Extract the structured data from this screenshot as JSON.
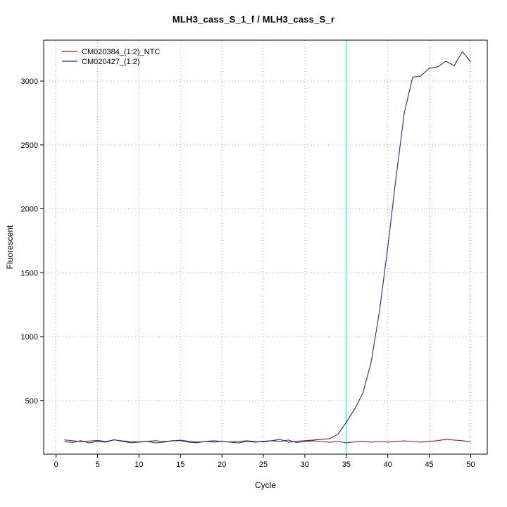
{
  "chart_data": {
    "type": "line",
    "title": "MLH3_cass_S_1_f / MLH3_cass_S_r",
    "xlabel": "Cycle",
    "ylabel": "Fluorescent",
    "xticks": [
      0,
      5,
      10,
      15,
      20,
      25,
      30,
      35,
      40,
      45,
      50
    ],
    "yticks": [
      500,
      1000,
      1500,
      2000,
      2500,
      3000
    ],
    "xlim": [
      -1.5,
      52
    ],
    "ylim": [
      80,
      3320
    ],
    "grid": true,
    "grid_color": "#bdbdbd",
    "legend_position": "top-left",
    "threshold_line": {
      "x": 35,
      "color": "#00ffff"
    },
    "x": [
      1,
      2,
      3,
      4,
      5,
      6,
      7,
      8,
      9,
      10,
      11,
      12,
      13,
      14,
      15,
      16,
      17,
      18,
      19,
      20,
      21,
      22,
      23,
      24,
      25,
      26,
      27,
      28,
      29,
      30,
      31,
      32,
      33,
      34,
      35,
      36,
      37,
      38,
      39,
      40,
      41,
      42,
      43,
      44,
      45,
      46,
      47,
      48,
      49,
      50
    ],
    "series": [
      {
        "name": "CM020384_(1:2)_NTC",
        "color": "#8b2525",
        "values": [
          192,
          186,
          178,
          183,
          188,
          180,
          192,
          184,
          179,
          176,
          181,
          186,
          179,
          184,
          190,
          181,
          175,
          180,
          186,
          179,
          176,
          180,
          185,
          179,
          176,
          186,
          181,
          191,
          171,
          179,
          184,
          179,
          173,
          180,
          169,
          176,
          181,
          174,
          179,
          175,
          180,
          184,
          179,
          175,
          180,
          186,
          196,
          191,
          186,
          176
        ]
      },
      {
        "name": "CM020427_(1:2)",
        "color": "#26268f",
        "values": [
          178,
          172,
          186,
          168,
          181,
          174,
          193,
          181,
          169,
          174,
          181,
          168,
          174,
          186,
          186,
          174,
          169,
          181,
          174,
          181,
          174,
          168,
          181,
          174,
          181,
          186,
          196,
          174,
          181,
          186,
          191,
          196,
          201,
          236,
          330,
          432,
          560,
          800,
          1200,
          1700,
          2250,
          2750,
          3030,
          3040,
          3100,
          3110,
          3155,
          3120,
          3230,
          3150
        ]
      }
    ]
  }
}
